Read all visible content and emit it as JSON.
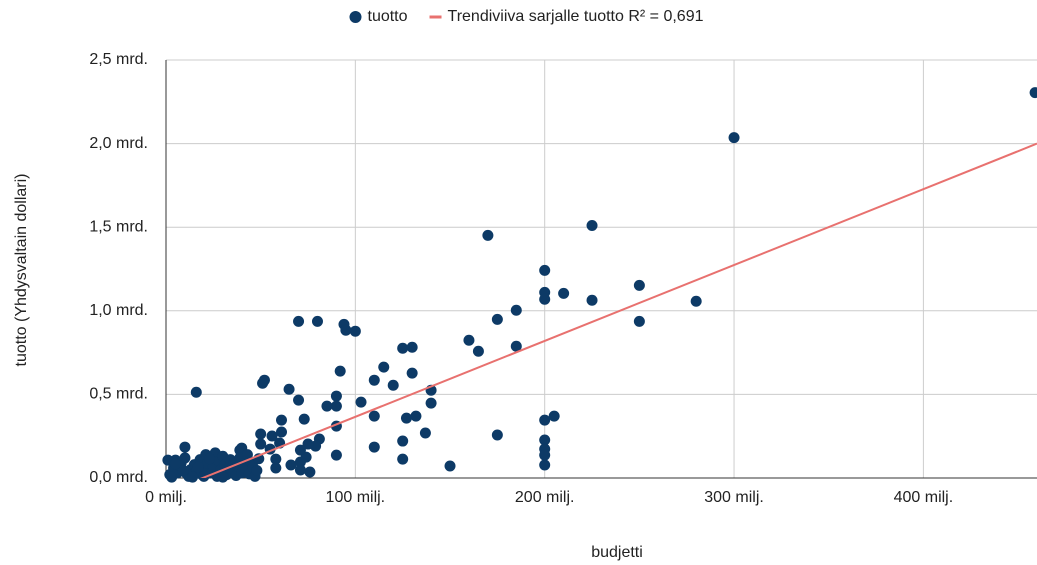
{
  "chart_data": {
    "type": "scatter",
    "x_label": "budjetti",
    "y_label": "tuotto (Yhdysvaltain dollari)",
    "xlim": [
      0,
      460
    ],
    "ylim": [
      0,
      2500
    ],
    "xticks": [
      {
        "value": 0,
        "label": "0 milj."
      },
      {
        "value": 100,
        "label": "100 milj."
      },
      {
        "value": 200,
        "label": "200 milj."
      },
      {
        "value": 300,
        "label": "300 milj."
      },
      {
        "value": 400,
        "label": "400 milj."
      }
    ],
    "yticks": [
      {
        "value": 0,
        "label": "0,0 mrd."
      },
      {
        "value": 500,
        "label": "0,5 mrd."
      },
      {
        "value": 1000,
        "label": "1,0 mrd."
      },
      {
        "value": 1500,
        "label": "1,5 mrd."
      },
      {
        "value": 2000,
        "label": "2,0 mrd."
      },
      {
        "value": 2500,
        "label": "2,5 mrd."
      }
    ],
    "grid": true,
    "legend": "top",
    "series": [
      {
        "name": "tuotto",
        "color": "#0d3a66",
        "x": [
          459,
          300,
          225,
          170,
          200,
          200,
          200,
          210,
          225,
          250,
          280,
          250,
          185,
          175,
          185,
          160,
          165,
          70,
          80,
          94,
          95,
          100,
          92,
          115,
          110,
          120,
          125,
          130,
          130,
          140,
          140,
          103,
          90,
          90,
          85,
          110,
          127,
          132,
          137,
          125,
          125,
          110,
          90,
          90,
          175,
          150,
          200,
          205,
          200,
          200,
          200,
          200,
          16,
          51,
          52,
          65,
          70,
          73,
          61,
          61,
          60,
          50,
          56,
          50,
          55,
          81,
          79,
          75,
          71,
          71,
          74,
          66,
          58,
          58,
          76,
          71,
          10,
          5,
          1,
          39,
          40,
          2,
          4,
          6,
          8,
          10,
          12,
          13,
          15,
          16,
          18,
          19,
          20,
          21,
          22,
          24,
          25,
          26,
          27,
          28,
          29,
          30,
          31,
          32,
          33,
          34,
          35,
          36,
          37,
          38,
          39,
          40,
          41,
          42,
          43,
          44,
          45,
          46,
          47,
          48,
          49,
          3,
          7,
          11,
          14,
          23,
          17,
          9,
          5,
          30,
          20
        ],
        "values": [
          2305,
          2036,
          1510,
          1451,
          1242,
          1110,
          1069,
          1104,
          1063,
          1152,
          1057,
          937,
          1003,
          949,
          788,
          824,
          758,
          937,
          937,
          919,
          884,
          878,
          639,
          663,
          585,
          555,
          776,
          782,
          627,
          525,
          448,
          454,
          490,
          430,
          430,
          370,
          358,
          370,
          269,
          221,
          113,
          185,
          310,
          137,
          257,
          72,
          346,
          370,
          227,
          173,
          137,
          78,
          513,
          567,
          585,
          531,
          466,
          352,
          346,
          275,
          209,
          263,
          251,
          203,
          173,
          233,
          191,
          203,
          167,
          96,
          125,
          78,
          60,
          113,
          36,
          48,
          185,
          107,
          107,
          167,
          179,
          20,
          60,
          30,
          90,
          120,
          10,
          50,
          80,
          40,
          110,
          20,
          60,
          140,
          90,
          30,
          70,
          150,
          10,
          100,
          50,
          130,
          80,
          20,
          60,
          110,
          40,
          90,
          15,
          70,
          120,
          30,
          85,
          55,
          140,
          25,
          95,
          65,
          10,
          45,
          115,
          5,
          75,
          25,
          5,
          115,
          65,
          45,
          85,
          5,
          10
        ]
      },
      {
        "name": "Trendiviiva sarjalle tuotto R² = 0,691",
        "color": "#e8716f",
        "type": "line",
        "x": [
          0,
          460
        ],
        "values": [
          -88,
          2000
        ]
      }
    ]
  }
}
